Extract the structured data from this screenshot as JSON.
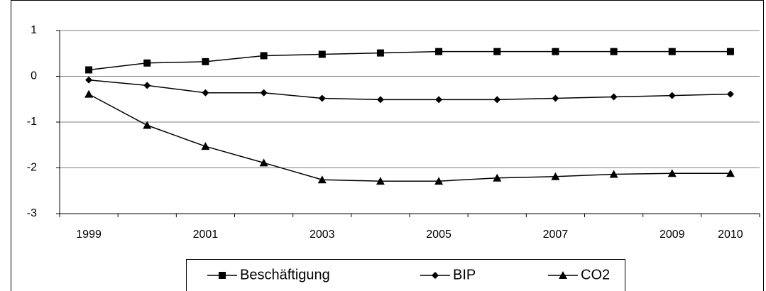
{
  "chart_data": {
    "type": "line",
    "categories": [
      "1999",
      null,
      "2001",
      null,
      "2003",
      null,
      "2005",
      null,
      "2007",
      null,
      "2009",
      "2010"
    ],
    "series": [
      {
        "name": "Beschäftigung",
        "color": "#000000",
        "marker": "square",
        "values": [
          0.14,
          0.29,
          0.32,
          0.45,
          0.48,
          0.51,
          0.54,
          0.54,
          0.54,
          0.54,
          0.54,
          0.54
        ]
      },
      {
        "name": "BIP",
        "color": "#000000",
        "marker": "diamond",
        "values": [
          -0.08,
          -0.2,
          -0.36,
          -0.36,
          -0.48,
          -0.51,
          -0.51,
          -0.51,
          -0.48,
          -0.45,
          -0.42,
          -0.39
        ]
      },
      {
        "name": "CO2",
        "color": "#000000",
        "marker": "triangle",
        "values": [
          -0.39,
          -1.07,
          -1.53,
          -1.89,
          -2.26,
          -2.29,
          -2.29,
          -2.22,
          -2.19,
          -2.14,
          -2.12,
          -2.12
        ]
      }
    ],
    "ylim": [
      -3,
      1
    ],
    "yticks": [
      -3,
      -2,
      -1,
      0,
      1
    ],
    "grid": true,
    "legend": "bottom"
  }
}
